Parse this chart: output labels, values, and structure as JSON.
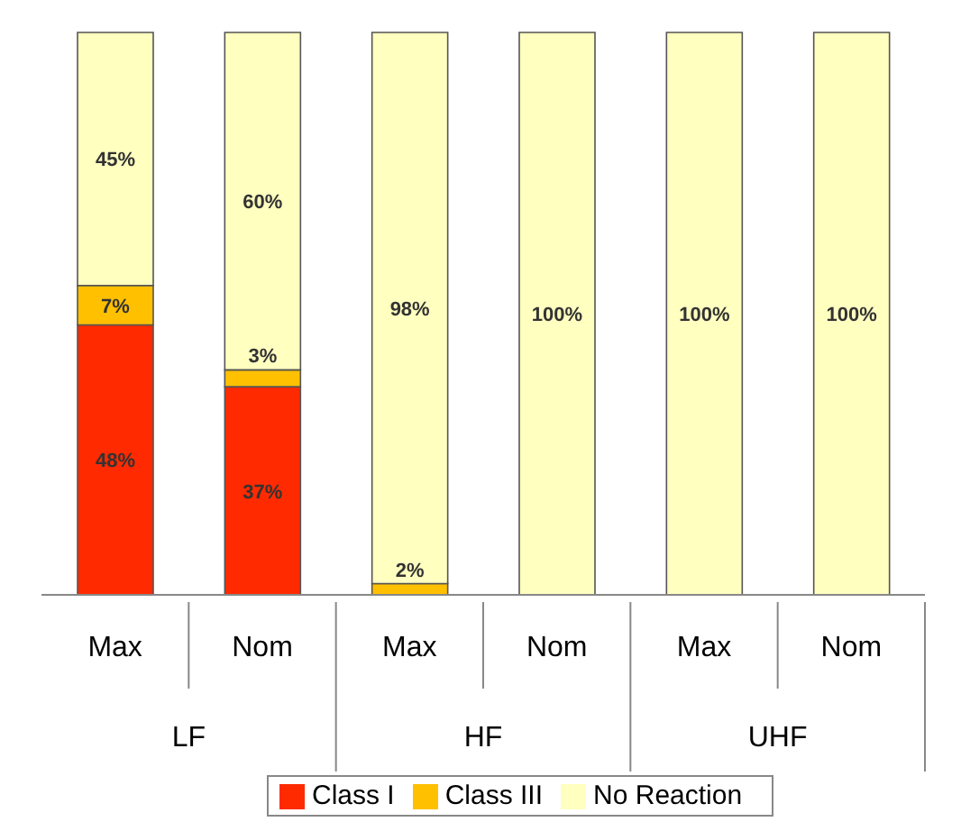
{
  "chart_data": {
    "type": "bar",
    "stacked": true,
    "categories": [
      "Max",
      "Nom",
      "Max",
      "Nom",
      "Max",
      "Nom"
    ],
    "annotations": [
      "LF",
      "HF",
      "UHF"
    ],
    "series": [
      {
        "name": "Class I",
        "color": "#ff2a00",
        "values": [
          48,
          37,
          0,
          0,
          0,
          0
        ],
        "value_labels": [
          "48%",
          "37%",
          null,
          null,
          null,
          null
        ]
      },
      {
        "name": "Class III",
        "color": "#ffc000",
        "values": [
          7,
          3,
          2,
          0,
          0,
          0
        ],
        "value_labels": [
          "7%",
          "3%",
          "2%",
          null,
          null,
          null
        ]
      },
      {
        "name": "No Reaction",
        "color": "#ffffc0",
        "values": [
          45,
          60,
          98,
          100,
          100,
          100
        ],
        "value_labels": [
          "45%",
          "60%",
          "98%",
          "100%",
          "100%",
          "100%"
        ]
      }
    ],
    "legend": "bottom",
    "grid": false
  }
}
